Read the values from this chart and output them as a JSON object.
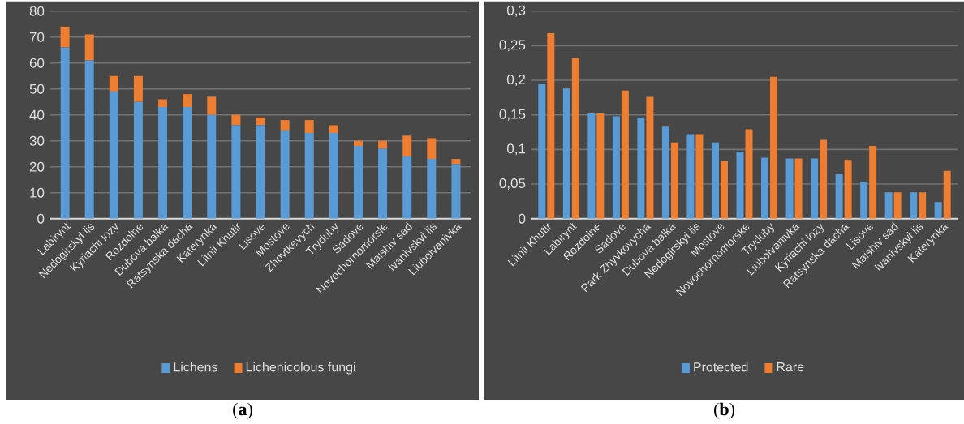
{
  "chart_data": [
    {
      "type": "bar",
      "stacked": true,
      "categories": [
        "Labirynt",
        "Nedogirskyi lis",
        "Kyriachi lozy",
        "Rozdolne",
        "Dubova balka",
        "Ratsynska dacha",
        "Katerynka",
        "Litnii Khutir",
        "Lisove",
        "Mostove",
        "Zhovtkevych",
        "Tryduby",
        "Sadove",
        "Novochornomorsle",
        "Maishiv sad",
        "Ivanivskyi lis",
        "Liuboivanivka"
      ],
      "series": [
        {
          "name": "Lichens",
          "color": "#5b9bd5",
          "values": [
            66,
            61,
            49,
            45,
            43,
            43,
            40,
            36,
            36,
            34,
            33,
            33,
            28,
            27,
            24,
            23,
            21
          ]
        },
        {
          "name": "Lichenicolous fungi",
          "color": "#ed7d31",
          "values": [
            8,
            10,
            6,
            10,
            3,
            5,
            7,
            4,
            3,
            4,
            5,
            3,
            2,
            3,
            8,
            8,
            2
          ]
        }
      ],
      "ylim": [
        0,
        80
      ],
      "yticks": [
        0,
        10,
        20,
        30,
        40,
        50,
        60,
        70,
        80
      ],
      "grid": "y",
      "legend": "bottom",
      "annotations": [
        "(**a**)"
      ]
    },
    {
      "type": "bar",
      "categories": [
        "Litnii Khutir",
        "Labirynt",
        "Rozdolne",
        "Sadove",
        "Park Zhyvkovycha",
        "Dubova balka",
        "Nedogirskyi lis",
        "Mostove",
        "Novochornomorske",
        "Tryduby",
        "Liuboivanivka",
        "Kyriachi lozy",
        "Ratsynska dacha",
        "Lisove",
        "Maishiv sad",
        "Ivanivskyi lis",
        "Katerynka"
      ],
      "series": [
        {
          "name": "Protected",
          "color": "#5b9bd5",
          "values": [
            0.195,
            0.188,
            0.152,
            0.148,
            0.146,
            0.133,
            0.122,
            0.11,
            0.097,
            0.088,
            0.087,
            0.087,
            0.064,
            0.053,
            0.038,
            0.038,
            0.024
          ]
        },
        {
          "name": "Rare",
          "color": "#ed7d31",
          "values": [
            0.268,
            0.232,
            0.152,
            0.185,
            0.176,
            0.11,
            0.122,
            0.083,
            0.129,
            0.205,
            0.087,
            0.114,
            0.085,
            0.105,
            0.038,
            0.038,
            0.069
          ]
        }
      ],
      "ylim": [
        0,
        0.3
      ],
      "yticks": [
        0,
        {
          "value": 0.05,
          "label": "0,05"
        },
        {
          "value": 0.1,
          "label": "0,1"
        },
        {
          "value": 0.15,
          "label": "0,15"
        },
        {
          "value": 0.2,
          "label": "0,2"
        },
        {
          "value": 0.25,
          "label": "0,25"
        },
        {
          "value": 0.3,
          "label": "0,3"
        }
      ],
      "grid": "y",
      "legend": "bottom",
      "annotations": [
        "(**b**)"
      ]
    }
  ]
}
